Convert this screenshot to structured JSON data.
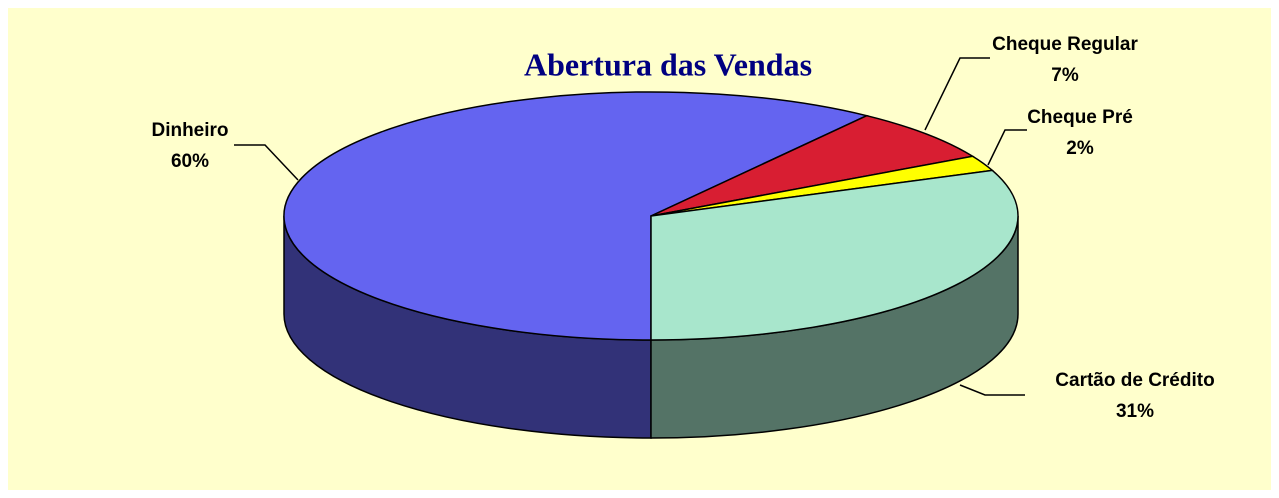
{
  "chart_data": {
    "type": "pie3d",
    "title": "Abertura das Vendas",
    "categories": [
      "Dinheiro",
      "Cheque Regular",
      "Cheque Pré",
      "Cartão de Crédito"
    ],
    "values": [
      60,
      7,
      2,
      31
    ],
    "value_labels": [
      "60%",
      "7%",
      "2%",
      "31%"
    ],
    "colors": [
      "#6464f0",
      "#d81e32",
      "#ffff00",
      "#a8e6cc"
    ]
  }
}
